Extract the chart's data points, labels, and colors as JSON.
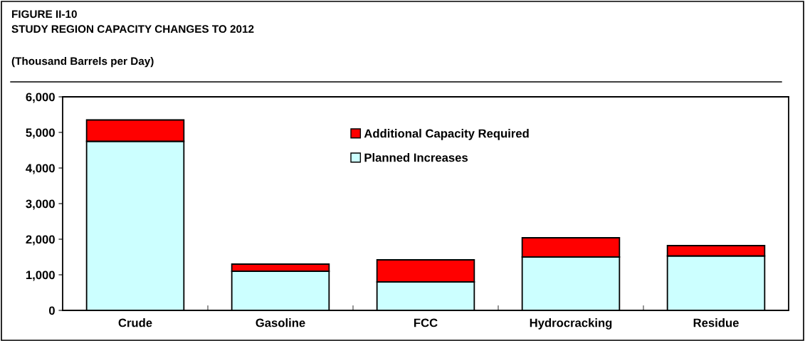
{
  "chart_data": {
    "type": "bar",
    "title": "FIGURE II-10\nSTUDY REGION CAPACITY CHANGES TO 2012",
    "subtitle": "(Thousand Barrels per Day)",
    "categories": [
      "Crude",
      "Gasoline",
      "FCC",
      "Hydrocracking",
      "Residue"
    ],
    "stacked": true,
    "series": [
      {
        "name": "Planned Increases",
        "color": "#ccffff",
        "values": [
          4750,
          1100,
          800,
          1500,
          1530
        ]
      },
      {
        "name": "Additional Capacity Required",
        "color": "#ff0000",
        "values": [
          600,
          200,
          620,
          540,
          290
        ]
      }
    ],
    "ylim": [
      0,
      6000
    ],
    "yticks": [
      {
        "value": 0,
        "label": "0"
      },
      {
        "value": 1000,
        "label": "1,000"
      },
      {
        "value": 2000,
        "label": "2,000"
      },
      {
        "value": 3000,
        "label": "3,000"
      },
      {
        "value": 4000,
        "label": "4,000"
      },
      {
        "value": 5000,
        "label": "5,000"
      },
      {
        "value": 6000,
        "label": "6,000"
      }
    ],
    "grid": false,
    "legend": "top"
  }
}
